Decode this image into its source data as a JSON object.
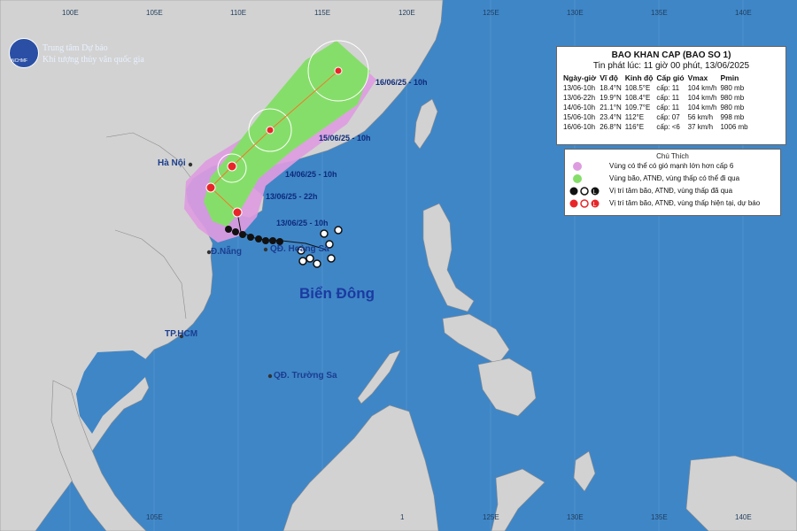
{
  "agency": {
    "name_line1": "Trung tâm Dự báo",
    "name_line2": "Khí tượng thủy văn quốc gia",
    "logo_text": "NCHMF"
  },
  "longitude_labels_top": [
    "100E",
    "105E",
    "110E",
    "115E",
    "120E",
    "125E",
    "130E",
    "135E",
    "140E"
  ],
  "longitude_labels_bottom": [
    "105E",
    "130E",
    "135E",
    "140E"
  ],
  "bottom_label_partial_1": "1",
  "bottom_label_partial_2": "125E",
  "places": {
    "hanoi": "Hà Nội",
    "danang": "Đ.Nẵng",
    "paracels": "QĐ. Hoàng Sa",
    "hcm": "TP.HCM",
    "spratlys": "QĐ. Trường Sa"
  },
  "sea_label": "Biển Đông",
  "track_time_labels": {
    "t1": "13/06/25 - 10h",
    "t2": "13/06/25 - 22h",
    "t3": "14/06/25 - 10h",
    "t4": "15/06/25 - 10h",
    "t5": "16/06/25 - 10h"
  },
  "bulletin": {
    "title": "BAO KHAN CAP (BAO SO 1)",
    "issued": "Tin phát lúc: 11 giờ 00 phút, 13/06/2025",
    "columns": [
      "Ngày-giờ",
      "Vĩ độ",
      "Kinh độ",
      "Cấp gió",
      "Vmax",
      "Pmin"
    ],
    "rows": [
      [
        "13/06-10h",
        "18.4°N",
        "108.5°E",
        "cấp: 11",
        "104 km/h",
        "980 mb"
      ],
      [
        "13/06-22h",
        "19.9°N",
        "108.4°E",
        "cấp: 11",
        "104 km/h",
        "980 mb"
      ],
      [
        "14/06-10h",
        "21.1°N",
        "109.7°E",
        "cấp: 11",
        "104 km/h",
        "980 mb"
      ],
      [
        "15/06-10h",
        "23.4°N",
        "112°E",
        "cấp: 07",
        "56 km/h",
        "998 mb"
      ],
      [
        "16/06-10h",
        "26.8°N",
        "116°E",
        "cấp: <6",
        "37 km/h",
        "1006 mb"
      ]
    ]
  },
  "legend": {
    "title": "Chú Thích",
    "items": [
      "Vùng có thể có gió mạnh lớn hơn cấp 6",
      "Vùng bão, ATNĐ, vùng thấp có thể đi qua",
      "Vị trí tâm bão, ATNĐ, vùng thấp đã qua",
      "Vị trí tâm bão, ATNĐ, vùng thấp hiện tại, dự báo"
    ],
    "symbol_letters": [
      "Ꝏ",
      "O",
      "L"
    ]
  },
  "colors": {
    "sea": "#3f86c7",
    "land": "#d2d2d2",
    "strong_wind_zone": "#dd9ce0",
    "storm_zone": "#86de6a",
    "forecast_marker": "#e8262a",
    "past_marker": "#111111"
  }
}
